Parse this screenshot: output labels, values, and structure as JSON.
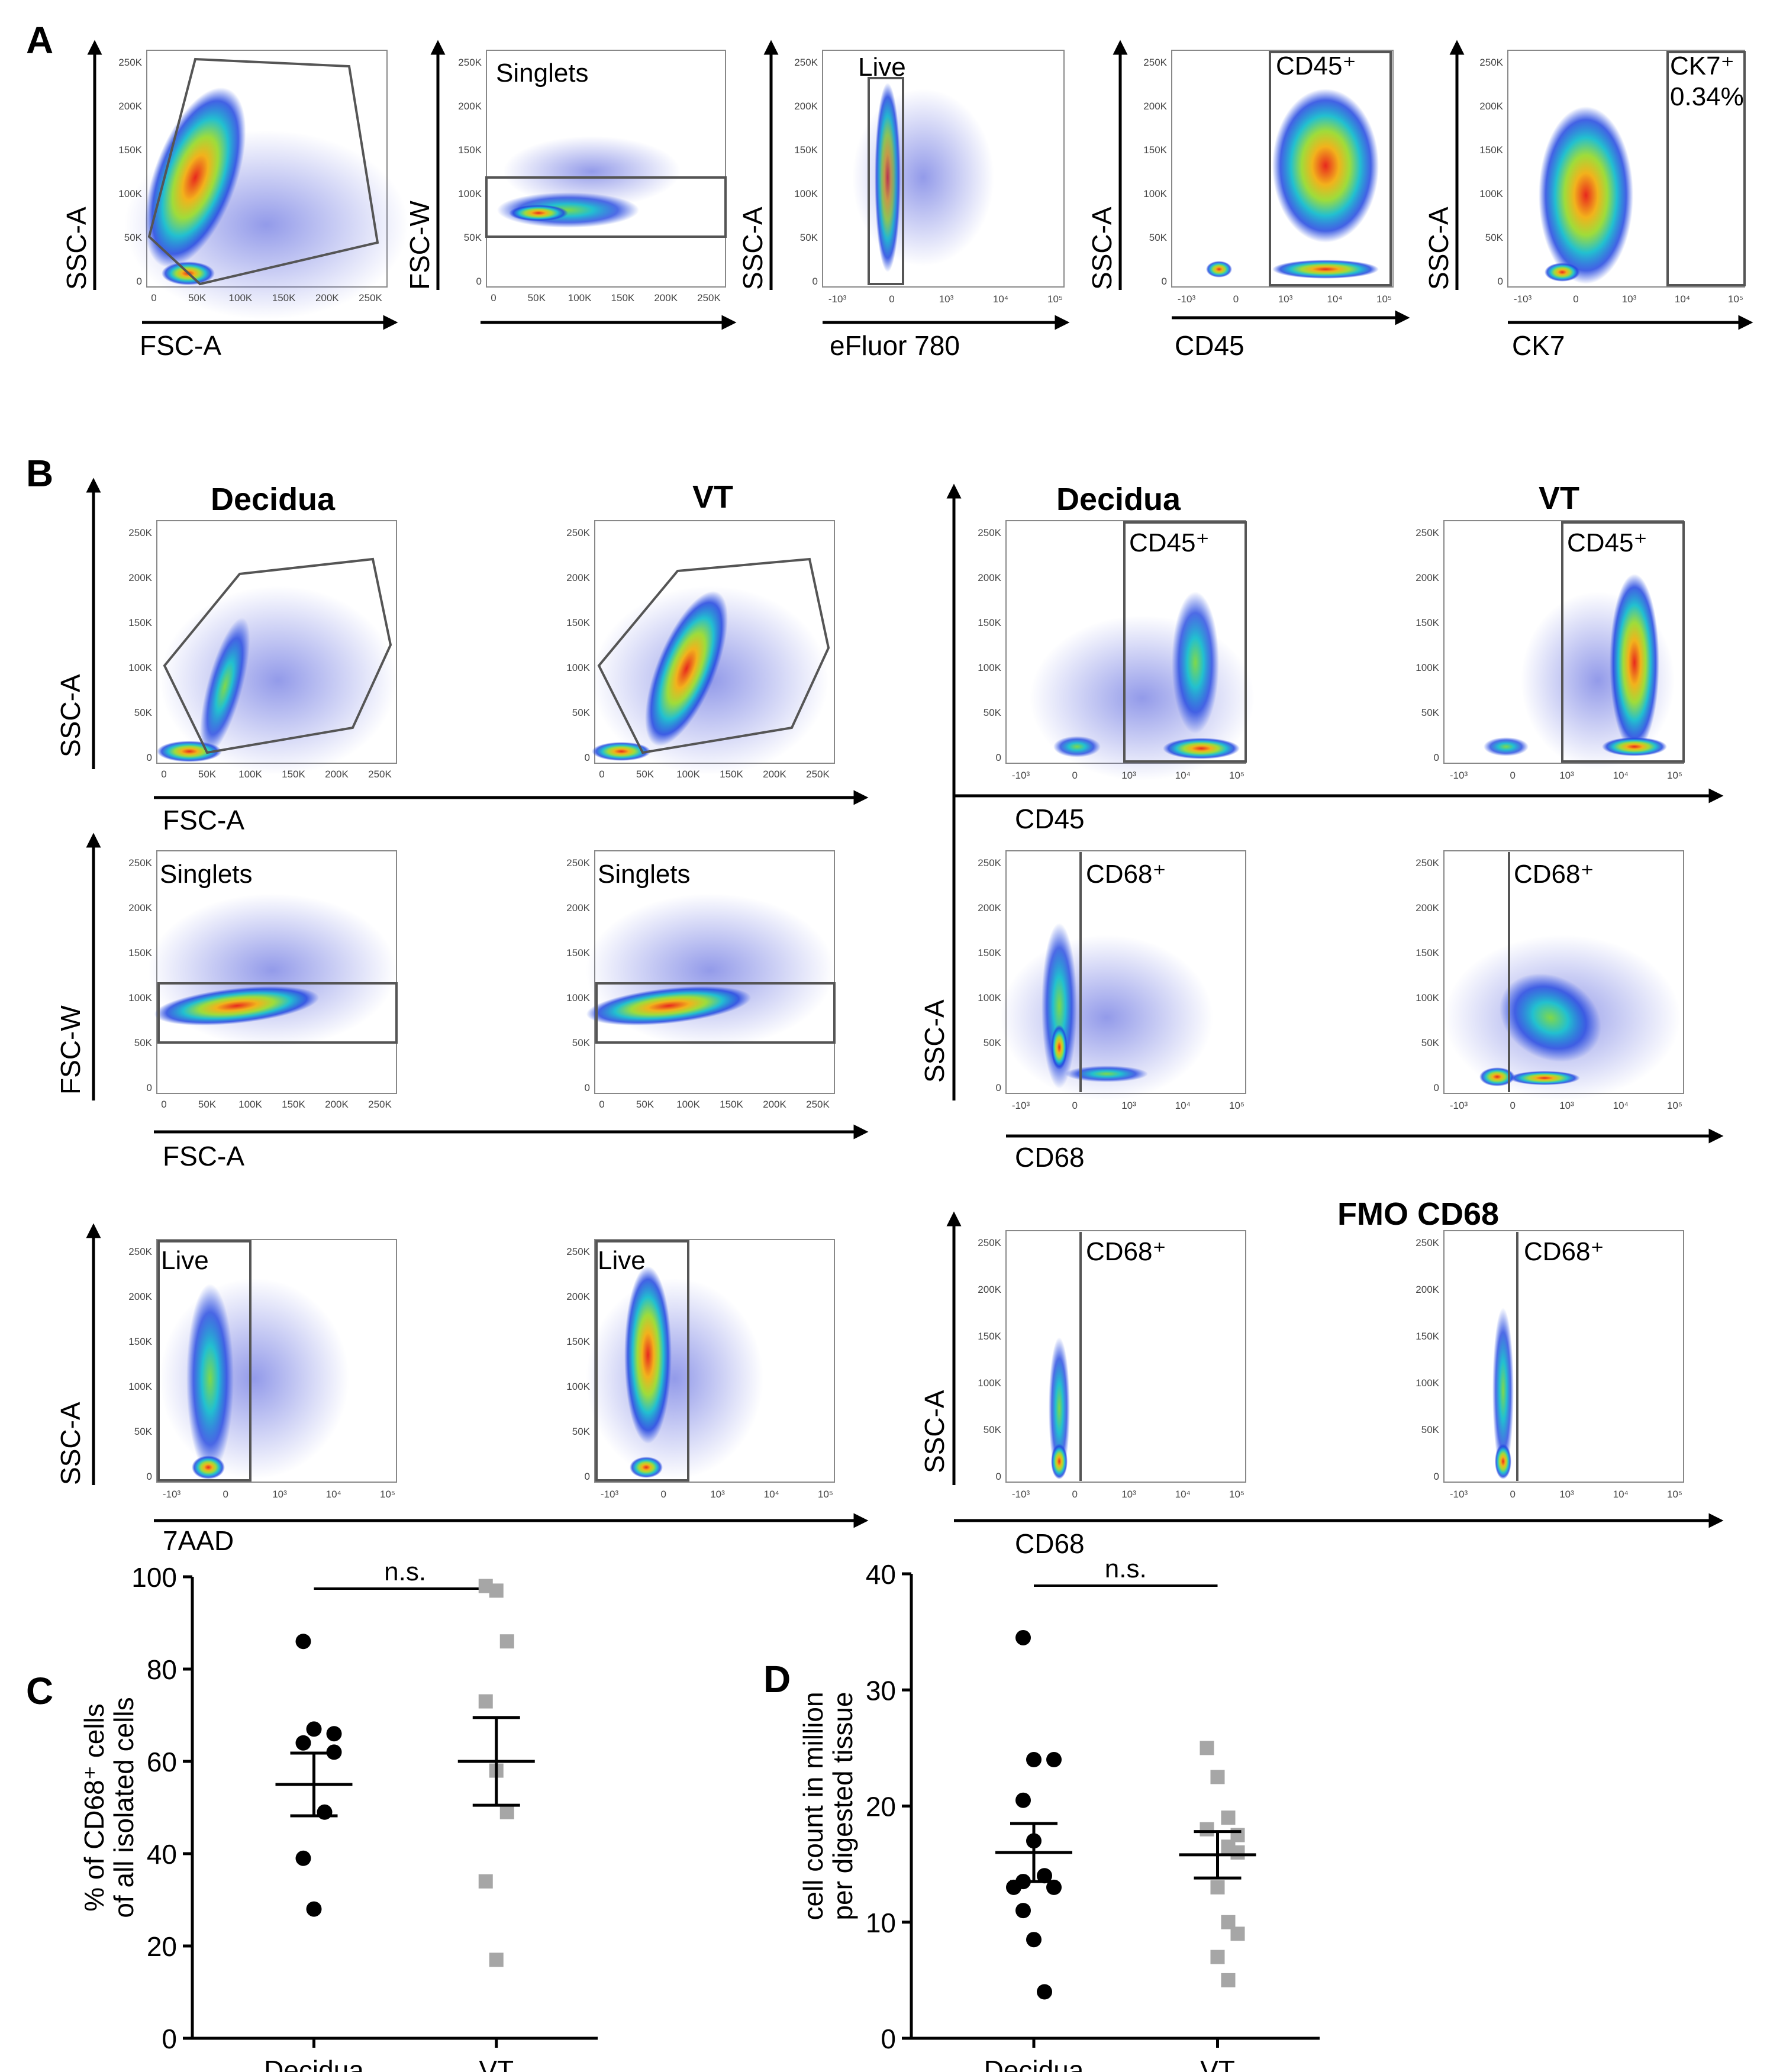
{
  "panels": {
    "A": "A",
    "B": "B",
    "C": "C",
    "D": "D"
  },
  "panelA": {
    "plots": [
      {
        "x_label": "FSC-A",
        "y_label": "SSC-A",
        "gate_label": "",
        "gate_value": ""
      },
      {
        "x_label": "",
        "y_label": "FSC-W",
        "gate_label": "Singlets",
        "gate_value": ""
      },
      {
        "x_label": "eFluor 780",
        "y_label": "SSC-A",
        "gate_label": "Live",
        "gate_value": ""
      },
      {
        "x_label": "CD45",
        "y_label": "SSC-A",
        "gate_label": "CD45⁺",
        "gate_value": ""
      },
      {
        "x_label": "CK7",
        "y_label": "SSC-A",
        "gate_label": "CK7⁺",
        "gate_value": "0.34%"
      }
    ]
  },
  "panelB": {
    "column_headers": {
      "left_decidua": "Decidua",
      "left_vt": "VT",
      "right_decidua": "Decidua",
      "right_vt": "VT"
    },
    "fmo_header": "FMO CD68",
    "rows": [
      {
        "x_label": "FSC-A",
        "y_label": "SSC-A",
        "gate_label": ""
      },
      {
        "x_label": "FSC-A",
        "y_label": "FSC-W",
        "gate_label": "Singlets"
      },
      {
        "x_label": "7AAD",
        "y_label": "SSC-A",
        "gate_label": "Live"
      },
      {
        "x_label": "CD45",
        "y_label": "",
        "gate_label": "CD45⁺"
      },
      {
        "x_label": "CD68",
        "y_label": "SSC-A",
        "gate_label": "CD68⁺"
      },
      {
        "x_label": "CD68",
        "y_label": "SSC-A",
        "gate_label": "CD68⁺"
      }
    ]
  },
  "ticks": {
    "linear": [
      "0",
      "50K",
      "100K",
      "150K",
      "200K",
      "250K"
    ],
    "log": [
      "-10³",
      "0",
      "10³",
      "10⁴",
      "10⁵"
    ]
  },
  "colors": {
    "black": "#000000",
    "grey": "#a6a6a6"
  },
  "chart_data": [
    {
      "type": "scatter",
      "title": "C",
      "ylabel": "% of CD68⁺ cells of all isolated cells",
      "ylabel_lines": [
        "% of CD68⁺ cells",
        "of all isolated cells"
      ],
      "xlabel": "",
      "categories": [
        "Decidua",
        "VT"
      ],
      "ylim": [
        0,
        100
      ],
      "yticks": [
        "0",
        "20",
        "40",
        "60",
        "80",
        "100"
      ],
      "significance": "n.s.",
      "series": [
        {
          "name": "Decidua",
          "marker": "circle",
          "color": "#000000",
          "values": [
            86,
            67,
            66,
            64,
            62,
            49,
            39,
            28
          ],
          "mean": 55,
          "sem": 6.8
        },
        {
          "name": "VT",
          "marker": "square",
          "color": "#a6a6a6",
          "values": [
            98,
            97,
            86,
            73,
            58,
            49,
            34,
            17
          ],
          "mean": 60,
          "sem": 9.5
        }
      ]
    },
    {
      "type": "scatter",
      "title": "D",
      "ylabel": "cell count in million per digested tissue",
      "ylabel_lines": [
        "cell count in million",
        "per digested tissue"
      ],
      "xlabel": "",
      "categories": [
        "Decidua",
        "VT"
      ],
      "ylim": [
        0,
        40
      ],
      "yticks": [
        "0",
        "10",
        "20",
        "30",
        "40"
      ],
      "significance": "n.s.",
      "series": [
        {
          "name": "Decidua",
          "marker": "circle",
          "color": "#000000",
          "values": [
            34.5,
            24,
            24,
            20.5,
            17,
            14,
            13.5,
            13,
            13,
            11,
            8.5,
            4
          ],
          "mean": 16,
          "sem": 2.5
        },
        {
          "name": "VT",
          "marker": "square",
          "color": "#a6a6a6",
          "values": [
            25,
            22.5,
            19,
            18,
            17.5,
            16.5,
            16,
            13,
            10,
            9,
            7,
            5
          ],
          "mean": 15.8,
          "sem": 2.0
        }
      ]
    }
  ]
}
